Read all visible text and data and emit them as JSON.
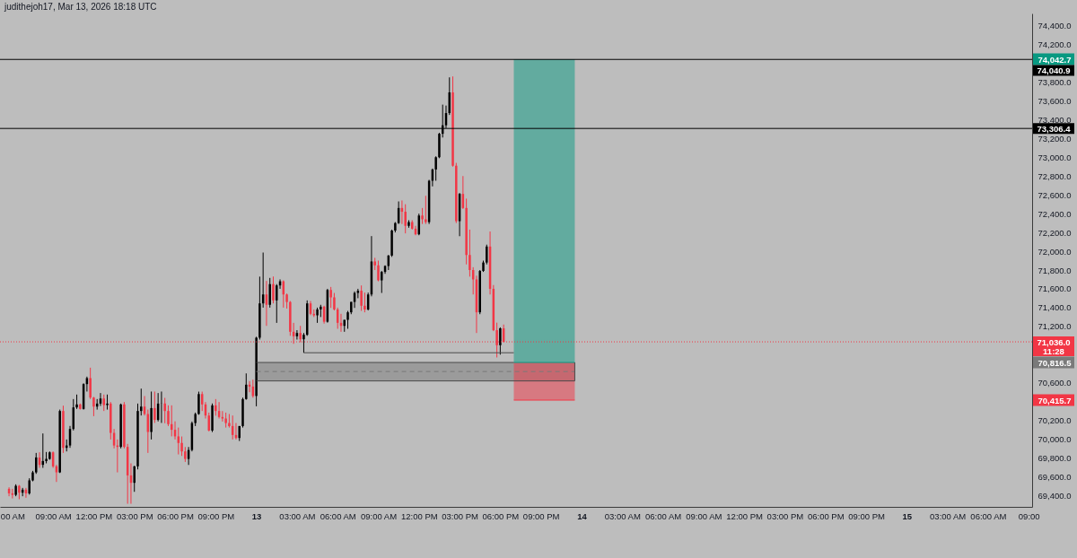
{
  "chart_data": {
    "type": "candlestick",
    "title": "judithejoh17, Mar 13, 2026 18:18 UTC",
    "x": [
      "2026-03-12T05:45",
      "2026-03-12T06:00",
      "2026-03-12T06:15",
      "2026-03-12T06:30",
      "2026-03-12T06:45",
      "2026-03-12T07:00",
      "2026-03-12T07:15",
      "2026-03-12T07:30",
      "2026-03-12T07:45",
      "2026-03-12T08:00",
      "2026-03-12T08:15",
      "2026-03-12T08:30",
      "2026-03-12T08:45",
      "2026-03-12T09:00",
      "2026-03-12T09:15",
      "2026-03-12T09:30",
      "2026-03-12T09:45",
      "2026-03-12T10:00",
      "2026-03-12T10:15",
      "2026-03-12T10:30",
      "2026-03-12T10:45",
      "2026-03-12T11:00",
      "2026-03-12T11:15",
      "2026-03-12T11:30",
      "2026-03-12T11:45",
      "2026-03-12T12:00",
      "2026-03-12T12:15",
      "2026-03-12T12:30",
      "2026-03-12T12:45",
      "2026-03-12T13:00",
      "2026-03-12T13:15",
      "2026-03-12T13:30",
      "2026-03-12T13:45",
      "2026-03-12T14:00",
      "2026-03-12T14:15",
      "2026-03-12T14:30",
      "2026-03-12T14:45",
      "2026-03-12T15:00",
      "2026-03-12T15:15",
      "2026-03-12T15:30",
      "2026-03-12T15:45",
      "2026-03-12T16:00",
      "2026-03-12T16:15",
      "2026-03-12T16:30",
      "2026-03-12T16:45",
      "2026-03-12T17:00",
      "2026-03-12T17:15",
      "2026-03-12T17:30",
      "2026-03-12T17:45",
      "2026-03-12T18:00",
      "2026-03-12T18:15",
      "2026-03-12T18:30",
      "2026-03-12T18:45",
      "2026-03-12T19:00",
      "2026-03-12T19:15",
      "2026-03-12T19:30",
      "2026-03-12T19:45",
      "2026-03-12T20:00",
      "2026-03-12T20:15",
      "2026-03-12T20:30",
      "2026-03-12T20:45",
      "2026-03-12T21:00",
      "2026-03-12T21:15",
      "2026-03-12T21:30",
      "2026-03-12T21:45",
      "2026-03-12T22:00",
      "2026-03-12T22:15",
      "2026-03-12T22:30",
      "2026-03-12T22:45",
      "2026-03-12T23:00",
      "2026-03-12T23:15",
      "2026-03-12T23:30",
      "2026-03-12T23:45",
      "2026-03-13T00:00",
      "2026-03-13T00:15",
      "2026-03-13T00:30",
      "2026-03-13T00:45",
      "2026-03-13T01:00",
      "2026-03-13T01:15",
      "2026-03-13T01:30",
      "2026-03-13T01:45",
      "2026-03-13T02:00",
      "2026-03-13T02:15",
      "2026-03-13T02:30",
      "2026-03-13T02:45",
      "2026-03-13T03:00",
      "2026-03-13T03:15",
      "2026-03-13T03:30",
      "2026-03-13T03:45",
      "2026-03-13T04:00",
      "2026-03-13T04:15",
      "2026-03-13T04:30",
      "2026-03-13T04:45",
      "2026-03-13T05:00",
      "2026-03-13T05:15",
      "2026-03-13T05:30",
      "2026-03-13T05:45",
      "2026-03-13T06:00",
      "2026-03-13T06:15",
      "2026-03-13T06:30",
      "2026-03-13T06:45",
      "2026-03-13T07:00",
      "2026-03-13T07:15",
      "2026-03-13T07:30",
      "2026-03-13T07:45",
      "2026-03-13T08:00",
      "2026-03-13T08:15",
      "2026-03-13T08:30",
      "2026-03-13T08:45",
      "2026-03-13T09:00",
      "2026-03-13T09:15",
      "2026-03-13T09:30",
      "2026-03-13T09:45",
      "2026-03-13T10:00",
      "2026-03-13T10:15",
      "2026-03-13T10:30",
      "2026-03-13T10:45",
      "2026-03-13T11:00",
      "2026-03-13T11:15",
      "2026-03-13T11:30",
      "2026-03-13T11:45",
      "2026-03-13T12:00",
      "2026-03-13T12:15",
      "2026-03-13T12:30",
      "2026-03-13T12:45",
      "2026-03-13T13:00",
      "2026-03-13T13:15",
      "2026-03-13T13:30",
      "2026-03-13T13:45",
      "2026-03-13T14:00",
      "2026-03-13T14:15",
      "2026-03-13T14:30",
      "2026-03-13T14:45",
      "2026-03-13T15:00",
      "2026-03-13T15:15",
      "2026-03-13T15:30",
      "2026-03-13T15:45",
      "2026-03-13T16:00",
      "2026-03-13T16:15",
      "2026-03-13T16:30",
      "2026-03-13T16:45",
      "2026-03-13T17:00",
      "2026-03-13T17:15",
      "2026-03-13T17:30",
      "2026-03-13T17:45",
      "2026-03-13T18:00",
      "2026-03-13T18:15"
    ],
    "ohlc": [
      [
        69472,
        69488,
        69393,
        69424
      ],
      [
        69424,
        69472,
        69370,
        69408
      ],
      [
        69408,
        69520,
        69393,
        69504
      ],
      [
        69504,
        69513,
        69361,
        69431
      ],
      [
        69431,
        69482,
        69393,
        69463
      ],
      [
        69463,
        69482,
        69377,
        69424
      ],
      [
        69424,
        69584,
        69410,
        69561
      ],
      [
        69561,
        69663,
        69552,
        69647
      ],
      [
        69647,
        69854,
        69631,
        69806
      ],
      [
        69806,
        69861,
        69695,
        69727
      ],
      [
        69727,
        70061,
        69695,
        69768
      ],
      [
        69768,
        69864,
        69743,
        69790
      ],
      [
        69790,
        69870,
        69781,
        69860
      ],
      [
        69860,
        69870,
        69695,
        69711
      ],
      [
        69711,
        69727,
        69545,
        69647
      ],
      [
        69647,
        70315,
        69640,
        70300
      ],
      [
        70300,
        70357,
        69854,
        69908
      ],
      [
        69908,
        69997,
        69870,
        69933
      ],
      [
        69933,
        70141,
        69908,
        70109
      ],
      [
        70109,
        70427,
        70093,
        70338
      ],
      [
        70338,
        70475,
        70322,
        70370
      ],
      [
        70370,
        70379,
        70315,
        70322
      ],
      [
        70322,
        70595,
        70315,
        70586
      ],
      [
        70586,
        70666,
        70507,
        70650
      ],
      [
        70650,
        70761,
        70427,
        70443
      ],
      [
        70443,
        70450,
        70245,
        70347
      ],
      [
        70347,
        70427,
        70315,
        70379
      ],
      [
        70379,
        70491,
        70354,
        70433
      ],
      [
        70433,
        70475,
        70300,
        70363
      ],
      [
        70363,
        70475,
        70315,
        70379
      ],
      [
        70379,
        70395,
        69997,
        70067
      ],
      [
        70067,
        70109,
        69902,
        69933
      ],
      [
        69933,
        69997,
        69647,
        69918
      ],
      [
        69918,
        70379,
        69902,
        70370
      ],
      [
        70370,
        70395,
        69902,
        69918
      ],
      [
        69918,
        69950,
        69313,
        69615
      ],
      [
        69615,
        69743,
        69313,
        69536
      ],
      [
        69536,
        69717,
        69440,
        69711
      ],
      [
        69711,
        70379,
        69679,
        70300
      ],
      [
        70300,
        70538,
        70252,
        70347
      ],
      [
        70347,
        70459,
        70252,
        70268
      ],
      [
        70268,
        70315,
        69854,
        70077
      ],
      [
        70077,
        70507,
        69997,
        70331
      ],
      [
        70331,
        70507,
        70173,
        70205
      ],
      [
        70205,
        70491,
        70189,
        70379
      ],
      [
        70379,
        70507,
        70173,
        70380
      ],
      [
        70380,
        70440,
        70170,
        70300
      ],
      [
        70300,
        70360,
        70140,
        70160
      ],
      [
        70160,
        70360,
        70030,
        70100
      ],
      [
        70100,
        70190,
        69997,
        70030
      ],
      [
        70030,
        70124,
        69838,
        69960
      ],
      [
        69960,
        70029,
        69822,
        69870
      ],
      [
        69870,
        69917,
        69758,
        69790
      ],
      [
        69790,
        69917,
        69726,
        69885
      ],
      [
        69885,
        70188,
        69870,
        70172
      ],
      [
        70172,
        70283,
        70140,
        70268
      ],
      [
        70268,
        70506,
        70260,
        70480
      ],
      [
        70480,
        70506,
        70300,
        70370
      ],
      [
        70370,
        70395,
        70220,
        70252
      ],
      [
        70252,
        70283,
        70083,
        70092
      ],
      [
        70092,
        70380,
        70076,
        70360
      ],
      [
        70360,
        70427,
        70250,
        70300
      ],
      [
        70300,
        70395,
        70220,
        70236
      ],
      [
        70236,
        70299,
        70188,
        70220
      ],
      [
        70220,
        70283,
        70124,
        70172
      ],
      [
        70172,
        70268,
        70124,
        70140
      ],
      [
        70140,
        70252,
        69997,
        70045
      ],
      [
        70045,
        70172,
        69997,
        70013
      ],
      [
        70013,
        70140,
        69981,
        70140
      ],
      [
        70140,
        70442,
        70124,
        70427
      ],
      [
        70427,
        70700,
        70420,
        70580
      ],
      [
        70580,
        70618,
        70500,
        70560
      ],
      [
        70560,
        70634,
        70442,
        70460
      ],
      [
        70460,
        71090,
        70350,
        71080
      ],
      [
        71080,
        71730,
        71060,
        71445
      ],
      [
        71445,
        71986,
        71400,
        71540
      ],
      [
        71540,
        71684,
        71206,
        71430
      ],
      [
        71430,
        71716,
        71400,
        71650
      ],
      [
        71650,
        71731,
        71445,
        71477
      ],
      [
        71477,
        71650,
        71238,
        71636
      ],
      [
        71636,
        71700,
        71600,
        71680
      ],
      [
        71680,
        71690,
        71400,
        71540
      ],
      [
        71540,
        71550,
        71390,
        71460
      ],
      [
        71460,
        71470,
        71100,
        71143
      ],
      [
        71143,
        71238,
        71015,
        71095
      ],
      [
        71095,
        71160,
        71060,
        71130
      ],
      [
        71130,
        71206,
        71031,
        71063
      ],
      [
        71063,
        71130,
        70920,
        71111
      ],
      [
        71111,
        71477,
        71100,
        71445
      ],
      [
        71445,
        71470,
        71320,
        71334
      ],
      [
        71334,
        71381,
        71300,
        71318
      ],
      [
        71318,
        71400,
        71238,
        71381
      ],
      [
        71381,
        71430,
        71300,
        71410
      ],
      [
        71410,
        71420,
        71230,
        71250
      ],
      [
        71250,
        71600,
        71240,
        71588
      ],
      [
        71588,
        71620,
        71397,
        71509
      ],
      [
        71509,
        71556,
        71370,
        71381
      ],
      [
        71381,
        71400,
        71175,
        71238
      ],
      [
        71238,
        71334,
        71143,
        71206
      ],
      [
        71206,
        71270,
        71143,
        71270
      ],
      [
        71270,
        71365,
        71175,
        71350
      ],
      [
        71350,
        71461,
        71330,
        71461
      ],
      [
        71461,
        71572,
        71397,
        71556
      ],
      [
        71556,
        71600,
        71500,
        71580
      ],
      [
        71580,
        71636,
        71365,
        71420
      ],
      [
        71420,
        71560,
        71350,
        71380
      ],
      [
        71380,
        71560,
        71370,
        71540
      ],
      [
        71540,
        72161,
        71520,
        71891
      ],
      [
        71891,
        71930,
        71800,
        71850
      ],
      [
        71850,
        71900,
        71680,
        71690
      ],
      [
        71690,
        71790,
        71556,
        71780
      ],
      [
        71780,
        71850,
        71760,
        71843
      ],
      [
        71843,
        71960,
        71800,
        71954
      ],
      [
        71954,
        72230,
        71940,
        72220
      ],
      [
        72220,
        72310,
        72200,
        72300
      ],
      [
        72300,
        72530,
        72290,
        72460
      ],
      [
        72460,
        72540,
        72290,
        72420
      ],
      [
        72420,
        72500,
        72190,
        72270
      ],
      [
        72270,
        72330,
        72250,
        72310
      ],
      [
        72310,
        72330,
        72230,
        72240
      ],
      [
        72240,
        72270,
        72170,
        72180
      ],
      [
        72180,
        72400,
        72170,
        72380
      ],
      [
        72380,
        72460,
        72290,
        72340
      ],
      [
        72340,
        72590,
        72290,
        72310
      ],
      [
        72310,
        72760,
        72290,
        72750
      ],
      [
        72750,
        72880,
        72690,
        72870
      ],
      [
        72870,
        73010,
        72750,
        73000
      ],
      [
        73000,
        73260,
        72990,
        73250
      ],
      [
        73250,
        73560,
        73210,
        73340
      ],
      [
        73340,
        73550,
        73310,
        73470
      ],
      [
        73470,
        73850,
        73450,
        73690
      ],
      [
        73690,
        73860,
        72900,
        72910
      ],
      [
        72910,
        72940,
        72300,
        72320
      ],
      [
        72320,
        72620,
        72160,
        72610
      ],
      [
        72610,
        72800,
        72450,
        72460
      ],
      [
        72460,
        72560,
        71860,
        71960
      ],
      [
        71960,
        72230,
        71730,
        71800
      ],
      [
        71800,
        71830,
        71540,
        71700
      ],
      [
        71700,
        71740,
        71130,
        71350
      ],
      [
        71350,
        71800,
        71330,
        71790
      ],
      [
        71790,
        71900,
        71780,
        71880
      ],
      [
        71880,
        72070,
        71860,
        72050
      ],
      [
        72050,
        72210,
        71540,
        71600
      ],
      [
        71600,
        71640,
        71150,
        71160
      ],
      [
        71160,
        71240,
        70870,
        71000
      ],
      [
        71000,
        71190,
        70900,
        71180
      ],
      [
        71180,
        71220,
        71030,
        71036
      ]
    ],
    "colors": [
      "#f23645",
      "#f23645",
      "#000000",
      "#f23645",
      "#000000",
      "#f23645",
      "#000000",
      "#000000",
      "#000000",
      "#f23645",
      "#000000",
      "#000000",
      "#000000",
      "#f23645",
      "#f23645",
      "#000000",
      "#f23645",
      "#000000",
      "#000000",
      "#000000",
      "#000000",
      "#f23645",
      "#000000",
      "#000000",
      "#f23645",
      "#f23645",
      "#000000",
      "#000000",
      "#f23645",
      "#000000",
      "#f23645",
      "#f23645",
      "#f23645",
      "#000000",
      "#f23645",
      "#f23645",
      "#f23645",
      "#000000",
      "#000000",
      "#000000",
      "#f23645",
      "#f23645",
      "#000000",
      "#f23645",
      "#000000",
      "#000000",
      "#f23645",
      "#f23645",
      "#f23645",
      "#f23645",
      "#f23645",
      "#f23645",
      "#f23645",
      "#000000",
      "#000000",
      "#000000",
      "#000000",
      "#f23645",
      "#f23645",
      "#f23645",
      "#000000",
      "#f23645",
      "#f23645",
      "#f23645",
      "#f23645",
      "#f23645",
      "#f23645",
      "#f23645",
      "#000000",
      "#000000",
      "#000000",
      "#f23645",
      "#f23645",
      "#000000",
      "#000000",
      "#000000",
      "#f23645",
      "#000000",
      "#f23645",
      "#000000",
      "#000000",
      "#f23645",
      "#f23645",
      "#f23645",
      "#f23645",
      "#000000",
      "#f23645",
      "#000000",
      "#000000",
      "#f23645",
      "#f23645",
      "#000000",
      "#000000",
      "#f23645",
      "#000000",
      "#f23645",
      "#f23645",
      "#f23645",
      "#f23645",
      "#000000",
      "#000000",
      "#000000",
      "#000000",
      "#000000",
      "#f23645",
      "#f23645",
      "#000000",
      "#000000",
      "#f23645",
      "#f23645",
      "#000000",
      "#000000",
      "#000000",
      "#000000",
      "#000000",
      "#000000",
      "#f23645",
      "#f23645",
      "#000000",
      "#f23645",
      "#f23645",
      "#000000",
      "#f23645",
      "#f23645",
      "#000000",
      "#000000",
      "#000000",
      "#000000",
      "#000000",
      "#000000",
      "#000000",
      "#f23645",
      "#f23645",
      "#000000",
      "#f23645",
      "#f23645",
      "#f23645",
      "#f23645",
      "#f23645",
      "#000000",
      "#000000",
      "#000000",
      "#f23645",
      "#f23645",
      "#f23645",
      "#000000",
      "#f23645"
    ],
    "xlim": [
      "2026-03-12T05:05",
      "2026-03-15T09:15"
    ],
    "xticks": [
      {
        "value": "2026-03-12T06:00",
        "label": "00 AM"
      },
      {
        "value": "2026-03-12T09:00",
        "label": "09:00 AM"
      },
      {
        "value": "2026-03-12T12:00",
        "label": "12:00 PM"
      },
      {
        "value": "2026-03-12T15:00",
        "label": "03:00 PM"
      },
      {
        "value": "2026-03-12T18:00",
        "label": "06:00 PM"
      },
      {
        "value": "2026-03-12T21:00",
        "label": "09:00 PM"
      },
      {
        "value": "2026-03-13T00:00",
        "label": "13"
      },
      {
        "value": "2026-03-13T03:00",
        "label": "03:00 AM"
      },
      {
        "value": "2026-03-13T06:00",
        "label": "06:00 AM"
      },
      {
        "value": "2026-03-13T09:00",
        "label": "09:00 AM"
      },
      {
        "value": "2026-03-13T12:00",
        "label": "12:00 PM"
      },
      {
        "value": "2026-03-13T15:00",
        "label": "03:00 PM"
      },
      {
        "value": "2026-03-13T18:00",
        "label": "06:00 PM"
      },
      {
        "value": "2026-03-13T21:00",
        "label": "09:00 PM"
      },
      {
        "value": "2026-03-14T00:00",
        "label": "14"
      },
      {
        "value": "2026-03-14T03:00",
        "label": "03:00 AM"
      },
      {
        "value": "2026-03-14T06:00",
        "label": "06:00 AM"
      },
      {
        "value": "2026-03-14T09:00",
        "label": "09:00 AM"
      },
      {
        "value": "2026-03-14T12:00",
        "label": "12:00 PM"
      },
      {
        "value": "2026-03-14T15:00",
        "label": "03:00 PM"
      },
      {
        "value": "2026-03-14T18:00",
        "label": "06:00 PM"
      },
      {
        "value": "2026-03-14T21:00",
        "label": "09:00 PM"
      },
      {
        "value": "2026-03-15T00:00",
        "label": "15"
      },
      {
        "value": "2026-03-15T03:00",
        "label": "03:00 AM"
      },
      {
        "value": "2026-03-15T06:00",
        "label": "06:00 AM"
      },
      {
        "value": "2026-03-15T09:00",
        "label": "09:00"
      }
    ],
    "ylim": [
      69280,
      74530
    ],
    "yticks": [
      {
        "value": 69400,
        "label": "69,400.0"
      },
      {
        "value": 69600,
        "label": "69,600.0"
      },
      {
        "value": 69800,
        "label": "69,800.0"
      },
      {
        "value": 70000,
        "label": "70,000.0"
      },
      {
        "value": 70200,
        "label": "70,200.0"
      },
      {
        "value": 70415.7,
        "label": "70,415.7"
      },
      {
        "value": 70600,
        "label": "70,600.0"
      },
      {
        "value": 70816.5,
        "label": "70,816.5"
      },
      {
        "value": 71200,
        "label": "71,200.0"
      },
      {
        "value": 71400,
        "label": "71,400.0"
      },
      {
        "value": 71600,
        "label": "71,600.0"
      },
      {
        "value": 71800,
        "label": "71,800.0"
      },
      {
        "value": 72000,
        "label": "72,000.0"
      },
      {
        "value": 72200,
        "label": "72,200.0"
      },
      {
        "value": 72400,
        "label": "72,400.0"
      },
      {
        "value": 72600,
        "label": "72,600.0"
      },
      {
        "value": 72800,
        "label": "72,800.0"
      },
      {
        "value": 73000,
        "label": "73,000.0"
      },
      {
        "value": 73200,
        "label": "73,200.0"
      },
      {
        "value": 73400,
        "label": "73,400.0"
      },
      {
        "value": 73600,
        "label": "73,600.0"
      },
      {
        "value": 73800,
        "label": "73,800.0"
      },
      {
        "value": 74042.7,
        "label": "74,042.7"
      },
      {
        "value": 74200,
        "label": "74,200.0"
      },
      {
        "value": 74400,
        "label": "74,400.0"
      }
    ],
    "series": [
      {
        "type": "line",
        "x": [
          "2026-03-13T00:00",
          "2026-03-13T23:30"
        ],
        "values": [
          70720,
          70720
        ],
        "upper": [
          70816.5,
          70816.5
        ],
        "lower": [
          70620,
          70620
        ],
        "color": "#7a7a7a",
        "line_style": "dashed"
      },
      {
        "type": "line",
        "x": [
          "2026-03-13T19:00",
          "2026-03-13T23:30"
        ],
        "values": [
          70816.5,
          70816.5
        ],
        "upper": [
          74042.7,
          74042.7
        ],
        "lower": [
          70816.5,
          70816.5
        ],
        "color": "#089981"
      },
      {
        "type": "line",
        "x": [
          "2026-03-13T19:00",
          "2026-03-13T23:30"
        ],
        "values": [
          70415.7,
          70415.7
        ],
        "upper": [
          70816.5,
          70816.5
        ],
        "lower": [
          70415.7,
          70415.7
        ],
        "color": "#f23645"
      },
      {
        "type": "line",
        "x": [
          "2026-03-13T00:00",
          "2026-03-13T19:00"
        ],
        "values": [
          70816.5,
          70816.5
        ],
        "color": "#4a4a4a"
      },
      {
        "type": "line",
        "x": [
          "2026-03-13T00:00",
          "2026-03-13T23:30"
        ],
        "values": [
          70620,
          70620
        ],
        "color": "#4a4a4a"
      },
      {
        "type": "line",
        "x": [
          "2026-03-13T23:30",
          "2026-03-13T23:30"
        ],
        "values": [
          70620,
          70816.5
        ],
        "color": "#4a4a4a"
      },
      {
        "type": "line",
        "x": [
          "2026-03-13T03:30",
          "2026-03-13T19:00"
        ],
        "values": [
          70920,
          70920
        ],
        "color": "#4a4a4a"
      }
    ],
    "ref_lines": [
      {
        "axis": "y",
        "value": 74040.9,
        "label": "74,040.9",
        "color": "#000000"
      },
      {
        "axis": "y",
        "value": 73306.4,
        "label": "73,306.4",
        "color": "#000000"
      },
      {
        "axis": "y",
        "value": 71036.0,
        "label": "71,036.0\n11:28",
        "color": "#f23645",
        "line_style": "dotted"
      }
    ]
  }
}
